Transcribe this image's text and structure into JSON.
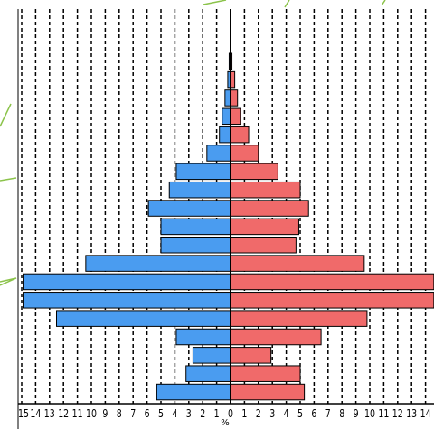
{
  "chart_data": {
    "type": "bar",
    "orientation": "horizontal",
    "subtype": "population-pyramid",
    "grid": true,
    "legend": "none",
    "x_tick_labels": [
      "15",
      "14",
      "13",
      "12",
      "11",
      "10",
      "9",
      "8",
      "7",
      "6",
      "5",
      "4",
      "3",
      "2",
      "1",
      "0",
      "1",
      "2",
      "3",
      "4",
      "5",
      "6",
      "7",
      "8",
      "9",
      "10",
      "11",
      "12",
      "13",
      "14"
    ],
    "x_unit_label": "%",
    "xlim_left": 15,
    "xlim_right": 14,
    "series": [
      {
        "side": "left",
        "color": "#4a9cf0",
        "values": [
          0.1,
          0.2,
          0.4,
          0.6,
          0.8,
          1.7,
          3.9,
          4.4,
          5.9,
          5.0,
          5.0,
          10.4,
          14.9,
          14.9,
          12.5,
          3.9,
          2.7,
          3.2,
          5.3
        ]
      },
      {
        "side": "right",
        "color": "#f06a6a",
        "values": [
          0.1,
          0.3,
          0.5,
          0.7,
          1.3,
          2.0,
          3.4,
          5.0,
          5.6,
          4.9,
          4.7,
          9.6,
          14.6,
          14.6,
          9.8,
          6.5,
          2.9,
          5.0,
          5.3
        ]
      }
    ]
  }
}
